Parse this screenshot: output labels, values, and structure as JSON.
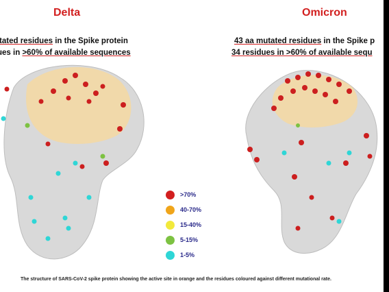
{
  "delta": {
    "title": "Delta",
    "line1_prefix": "",
    "line1_underlined": "utated residues",
    "line1_rest": " in the Spike protein",
    "line2_prefix": "ues in ",
    "line2_underlined": ">60% of available sequences"
  },
  "omicron": {
    "title": "Omicron",
    "line1_underlined": "43 aa mutated residues",
    "line1_rest": " in the Spike p",
    "line2_underlined": "34 residues in >60% of available sequ"
  },
  "legend": [
    {
      "label": ">70%",
      "color": "#d21f1f"
    },
    {
      "label": "40-70%",
      "color": "#f0a51a"
    },
    {
      "label": "15-40%",
      "color": "#f2e93b"
    },
    {
      "label": "5-15%",
      "color": "#7dc242"
    },
    {
      "label": "1-5%",
      "color": "#2fd6d6"
    }
  ],
  "caption": "The structure of SARS-CoV-2 spike protein showing the active site in orange and the residues coloured against different mutational rate."
}
